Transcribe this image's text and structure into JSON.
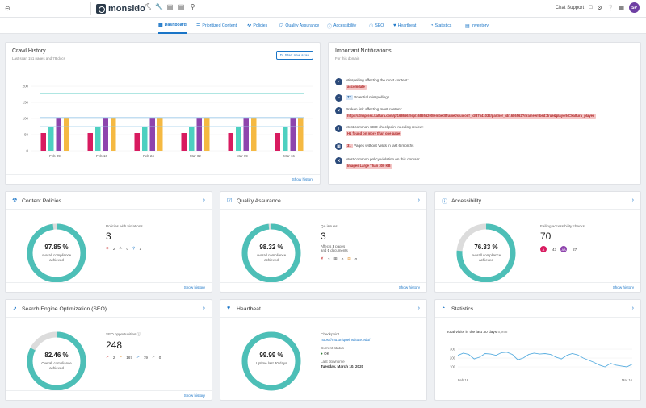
{
  "topbar": {
    "logo": "monsido",
    "icons": [
      "home-icon",
      "sitemap-icon",
      "wrench-icon",
      "bar-chart-icon",
      "document-icon",
      "search-icon"
    ],
    "chat_support": "Chat Support",
    "avatar": "SP"
  },
  "tabs": [
    {
      "label": "Dashboard",
      "icon": "dashboard-icon",
      "active": true
    },
    {
      "label": "Prioritized Content",
      "icon": "list-icon"
    },
    {
      "label": "Policies",
      "icon": "gavel-icon"
    },
    {
      "label": "Quality Assurance",
      "icon": "check-square-icon"
    },
    {
      "label": "Accessibility",
      "icon": "accessibility-icon"
    },
    {
      "label": "SEO",
      "icon": "seo-icon"
    },
    {
      "label": "Heartbeat",
      "icon": "heart-icon"
    },
    {
      "label": "Statistics",
      "icon": "pie-icon"
    },
    {
      "label": "Inventory",
      "icon": "inventory-icon"
    }
  ],
  "crawl": {
    "title": "Crawl History",
    "subtitle": "Last scan 151 pages and 78 docs",
    "start_scan": "Start new scan",
    "show_history": "Show history",
    "chart_data": {
      "type": "bar",
      "categories": [
        "Feb 09",
        "Feb 16",
        "Feb 24",
        "Mar 02",
        "Mar 09",
        "Mar 16"
      ],
      "ylim": [
        0,
        200
      ],
      "yticks": [
        0,
        50,
        100,
        150,
        200
      ],
      "series": [
        {
          "color": "#d81b60",
          "values": [
            55,
            55,
            55,
            55,
            55,
            55
          ]
        },
        {
          "color": "#4dd0c0",
          "values": [
            75,
            75,
            75,
            75,
            75,
            75
          ]
        },
        {
          "color": "#8e44ad",
          "values": [
            103,
            103,
            103,
            103,
            103,
            103
          ]
        },
        {
          "color": "#f5b942",
          "values": [
            103,
            103,
            103,
            103,
            103,
            103
          ]
        }
      ],
      "lines": [
        {
          "color": "#7fd8d0",
          "value": 178
        },
        {
          "color": "#9ecbea",
          "value": 103
        },
        {
          "color": "#9ecbea",
          "value": 75
        }
      ]
    }
  },
  "notifications": {
    "title": "Important Notifications",
    "subtitle": "For this domain",
    "items": [
      {
        "icon": "spellcheck-icon",
        "text": "Misspelling affecting the most content:",
        "tag": "accomdate",
        "tag_type": "red"
      },
      {
        "icon": "spellcheck-icon",
        "count": "77",
        "text": "Potential misspellings"
      },
      {
        "icon": "broken-link-icon",
        "text": "Broken link affecting most content:",
        "tag": "http://cdnapisec.kaltura.com/p/1686562/sp/168656200/embedIframeJs/uiconf_id/37541032/partner_id/1686562?iframeembed=true&playerId=kaltura_player",
        "tag_type": "red"
      },
      {
        "icon": "seo-icon",
        "text": "Most common SEO checkpoint needing review:",
        "tag": "H1 found on more than one page",
        "tag_type": "red"
      },
      {
        "icon": "calendar-icon",
        "count": "31",
        "text": "Pages without Visits in last 6 months"
      },
      {
        "icon": "gavel-icon",
        "text": "Most common policy violation on this domain:",
        "tag": "Images Large Than 300 KB",
        "tag_type": "red"
      }
    ]
  },
  "policies": {
    "title": "Content Policies",
    "value": "97.85 %",
    "value_num": 97.85,
    "label": "overall compliance achieved",
    "stat_label": "Policies with violations",
    "stat_num": "3",
    "badges": [
      {
        "icon": "ban-icon",
        "n": "2"
      },
      {
        "icon": "warning-icon",
        "n": "0"
      },
      {
        "icon": "search-icon",
        "n": "1"
      }
    ],
    "show_history": "Show history"
  },
  "qa": {
    "title": "Quality Assurance",
    "value": "98.32 %",
    "value_num": 98.32,
    "label": "overall compliance achieved",
    "stat_label": "QA issues",
    "stat_num": "3",
    "affects_pages": "3",
    "affects_docs": "0",
    "affects_line1": "Affects",
    "affects_line1b": "pages",
    "affects_line2": "and",
    "affects_line2b": "documents",
    "badges": [
      {
        "icon": "broken-link-icon",
        "n": "3"
      },
      {
        "icon": "image-icon",
        "n": "0"
      },
      {
        "icon": "spellcheck-icon",
        "n": "0"
      }
    ],
    "show_history": "Show history"
  },
  "accessibility": {
    "title": "Accessibility",
    "value": "76.33 %",
    "value_num": 76.33,
    "label": "overall compliance achieved",
    "stat_label": "Failing accessibility checks",
    "stat_num": "70",
    "badges": [
      {
        "label": "A",
        "n": "43",
        "color": "#d81b60"
      },
      {
        "label": "AA",
        "n": "27",
        "color": "#8e44ad"
      }
    ],
    "show_history": "Show history"
  },
  "seo": {
    "title": "Search Engine Optimization (SEO)",
    "value": "82.46 %",
    "value_num": 82.46,
    "label": "Overall compliance achieved",
    "stat_label": "SEO opportunities",
    "stat_num": "248",
    "badges": [
      {
        "n": "2",
        "color": "#c62828"
      },
      {
        "n": "167",
        "color": "#e08a1e"
      },
      {
        "n": "79",
        "color": "#1a75c7"
      },
      {
        "n": "0",
        "color": "#777"
      }
    ],
    "show_history": "Show history"
  },
  "heartbeat": {
    "title": "Heartbeat",
    "value": "99.99 %",
    "value_num": 99.99,
    "label": "Uptime last 30 days",
    "checkpoint_label": "Checkpoint",
    "checkpoint_url": "https://mu.uniqueinstitute.edu/",
    "status_label": "Current status",
    "status": "OK",
    "downtime_label": "Last downtime",
    "downtime": "Tuesday, March 10, 2020"
  },
  "statistics": {
    "title": "Statistics",
    "visits_label": "Total visits in the last 30 days",
    "visits": "5,948",
    "chart_data": {
      "type": "line",
      "x_start": "Feb 16",
      "x_end": "Mar 16",
      "ylim": [
        0,
        400
      ],
      "yticks": [
        100,
        200,
        300
      ],
      "values": [
        230,
        255,
        240,
        190,
        210,
        250,
        245,
        230,
        260,
        265,
        240,
        180,
        200,
        240,
        255,
        245,
        250,
        240,
        210,
        190,
        230,
        250,
        235,
        200,
        175,
        150,
        120,
        100,
        140,
        120,
        110,
        100,
        130
      ]
    }
  }
}
